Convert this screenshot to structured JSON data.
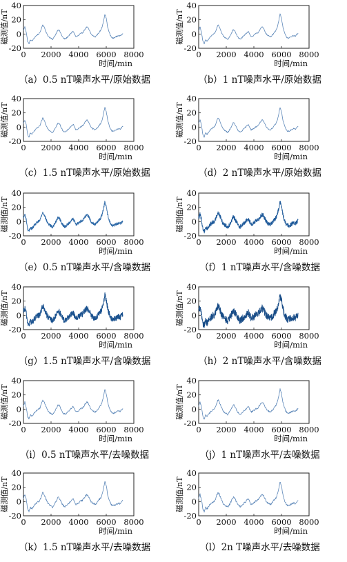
{
  "chart_data": [
    {
      "id": "a",
      "type": "line",
      "caption": "（a）0.5 nT噪声水平/原始数据",
      "xlabel": "时间/min",
      "ylabel": "磁测值/nT",
      "xlim": [
        0,
        8000
      ],
      "ylim": [
        -20,
        40
      ],
      "xticks": [
        0,
        2000,
        4000,
        6000,
        8000
      ],
      "yticks": [
        -20,
        0,
        20,
        40
      ],
      "xmax": 7200,
      "noise": 0,
      "series": [
        {
          "color": "#5b86b8"
        }
      ]
    },
    {
      "id": "b",
      "type": "line",
      "caption": "（b）1 nT噪声水平/原始数据",
      "xlabel": "时间/min",
      "ylabel": "磁测值/nT",
      "xlim": [
        0,
        8000
      ],
      "ylim": [
        -20,
        40
      ],
      "xticks": [
        0,
        2000,
        4000,
        6000,
        8000
      ],
      "yticks": [
        -20,
        0,
        20,
        40
      ],
      "xmax": 7200,
      "noise": 0,
      "series": [
        {
          "color": "#5b86b8"
        }
      ]
    },
    {
      "id": "c",
      "type": "line",
      "caption": "（c）1.5 nT噪声水平/原始数据",
      "xlabel": "时间/min",
      "ylabel": "磁测值/nT",
      "xlim": [
        0,
        8000
      ],
      "ylim": [
        -20,
        40
      ],
      "xticks": [
        0,
        2000,
        4000,
        6000,
        8000
      ],
      "yticks": [
        -20,
        0,
        20,
        40
      ],
      "xmax": 7200,
      "noise": 0,
      "series": [
        {
          "color": "#5b86b8"
        }
      ]
    },
    {
      "id": "d",
      "type": "line",
      "caption": "（d）2 nT噪声水平/原始数据",
      "xlabel": "时间/min",
      "ylabel": "磁测值/nT",
      "xlim": [
        0,
        8000
      ],
      "ylim": [
        -20,
        40
      ],
      "xticks": [
        0,
        2000,
        4000,
        6000,
        8000
      ],
      "yticks": [
        -20,
        0,
        20,
        40
      ],
      "xmax": 7200,
      "noise": 0,
      "series": [
        {
          "color": "#5b86b8"
        }
      ]
    },
    {
      "id": "e",
      "type": "line",
      "caption": "（e）0.5 nT噪声水平/含噪数据",
      "xlabel": "时间/min",
      "ylabel": "磁测值/nT",
      "xlim": [
        0,
        8000
      ],
      "ylim": [
        -20,
        40
      ],
      "xticks": [
        0,
        2000,
        4000,
        6000,
        8000
      ],
      "yticks": [
        -20,
        0,
        20,
        40
      ],
      "xmax": 7200,
      "noise": 1.2,
      "series": [
        {
          "color": "#2f6aa8"
        }
      ]
    },
    {
      "id": "f",
      "type": "line",
      "caption": "（f）1 nT噪声水平/含噪数据",
      "xlabel": "时间/min",
      "ylabel": "磁测值/nT",
      "xlim": [
        0,
        8000
      ],
      "ylim": [
        -20,
        40
      ],
      "xticks": [
        0,
        2000,
        4000,
        6000,
        8000
      ],
      "yticks": [
        -20,
        0,
        20,
        40
      ],
      "xmax": 7200,
      "noise": 2.2,
      "series": [
        {
          "color": "#1f5a9a"
        }
      ]
    },
    {
      "id": "g",
      "type": "line",
      "caption": "（g）1.5 nT噪声水平/含噪数据",
      "xlabel": "时间/min",
      "ylabel": "磁测值/nT",
      "xlim": [
        0,
        8000
      ],
      "ylim": [
        -20,
        40
      ],
      "xticks": [
        0,
        2000,
        4000,
        6000,
        8000
      ],
      "yticks": [
        -20,
        0,
        20,
        40
      ],
      "xmax": 7200,
      "noise": 3.4,
      "series": [
        {
          "color": "#1b528f"
        }
      ]
    },
    {
      "id": "h",
      "type": "line",
      "caption": "（h）2 nT噪声水平/含噪数据",
      "xlabel": "时间/min",
      "ylabel": "磁测值/nT",
      "xlim": [
        0,
        8000
      ],
      "ylim": [
        -20,
        40
      ],
      "xticks": [
        0,
        2000,
        4000,
        6000,
        8000
      ],
      "yticks": [
        -20,
        0,
        20,
        40
      ],
      "xmax": 7200,
      "noise": 4.4,
      "series": [
        {
          "color": "#184c87"
        }
      ]
    },
    {
      "id": "i",
      "type": "line",
      "caption": "（i）0.5 nT噪声水平/去噪数据",
      "xlabel": "时间/min",
      "ylabel": "磁测值/nT",
      "xlim": [
        0,
        8000
      ],
      "ylim": [
        -20,
        40
      ],
      "xticks": [
        0,
        2000,
        4000,
        6000,
        8000
      ],
      "yticks": [
        -20,
        0,
        20,
        40
      ],
      "xmax": 7200,
      "noise": 0.2,
      "series": [
        {
          "color": "#5b86b8"
        }
      ]
    },
    {
      "id": "j",
      "type": "line",
      "caption": "（j）1 nT噪声水平/去噪数据",
      "xlabel": "时间/min",
      "ylabel": "磁测值/nT",
      "xlim": [
        0,
        8000
      ],
      "ylim": [
        -20,
        40
      ],
      "xticks": [
        0,
        2000,
        4000,
        6000,
        8000
      ],
      "yticks": [
        -20,
        0,
        20,
        40
      ],
      "xmax": 7200,
      "noise": 0.3,
      "series": [
        {
          "color": "#5b86b8"
        }
      ]
    },
    {
      "id": "k",
      "type": "line",
      "caption": "（k）1.5 nT噪声水平/去噪数据",
      "xlabel": "时间/min",
      "ylabel": "磁测值/nT",
      "xlim": [
        0,
        8000
      ],
      "ylim": [
        -20,
        40
      ],
      "xticks": [
        0,
        2000,
        4000,
        6000,
        8000
      ],
      "yticks": [
        -20,
        0,
        20,
        40
      ],
      "xmax": 7200,
      "noise": 0.4,
      "series": [
        {
          "color": "#5b86b8"
        }
      ]
    },
    {
      "id": "l",
      "type": "line",
      "caption": "（l）2n T噪声水平/去噪数据",
      "xlabel": "时间/min",
      "ylabel": "磁测值/nT",
      "xlim": [
        0,
        8000
      ],
      "ylim": [
        -20,
        40
      ],
      "xticks": [
        0,
        2000,
        4000,
        6000,
        8000
      ],
      "yticks": [
        -20,
        0,
        20,
        40
      ],
      "xmax": 7200,
      "noise": 0.5,
      "series": [
        {
          "color": "#5b86b8"
        }
      ]
    }
  ],
  "signal_x": [
    0,
    100,
    200,
    300,
    400,
    500,
    600,
    700,
    800,
    900,
    1000,
    1100,
    1200,
    1300,
    1400,
    1500,
    1600,
    1700,
    1800,
    1900,
    2000,
    2100,
    2200,
    2300,
    2400,
    2500,
    2600,
    2700,
    2800,
    2900,
    3000,
    3100,
    3200,
    3300,
    3400,
    3500,
    3600,
    3700,
    3800,
    3900,
    4000,
    4100,
    4200,
    4300,
    4400,
    4500,
    4600,
    4700,
    4800,
    4900,
    5000,
    5100,
    5200,
    5300,
    5400,
    5500,
    5600,
    5700,
    5800,
    5900,
    6000,
    6100,
    6200,
    6300,
    6400,
    6500,
    6600,
    6700,
    6800,
    6900,
    7000,
    7100,
    7200
  ],
  "signal_y": [
    5,
    10,
    3,
    -10,
    -14,
    -8,
    -10,
    -8,
    -5,
    -3,
    -1,
    0,
    2,
    8,
    13,
    10,
    5,
    0,
    -3,
    -5,
    -6,
    -8,
    -5,
    -2,
    2,
    6,
    5,
    1,
    -3,
    -6,
    -7,
    -6,
    -4,
    -2,
    0,
    2,
    4,
    0,
    -4,
    -3,
    -2,
    0,
    1,
    2,
    5,
    8,
    10,
    8,
    4,
    0,
    -2,
    -3,
    -4,
    -2,
    0,
    3,
    5,
    10,
    18,
    28,
    22,
    10,
    3,
    -2,
    -5,
    -6,
    -5,
    -4,
    -3,
    -2,
    -3,
    -1,
    1
  ]
}
